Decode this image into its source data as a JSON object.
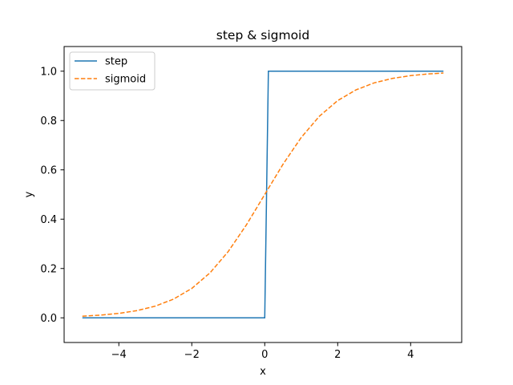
{
  "chart_data": {
    "type": "line",
    "title": "step & sigmoid",
    "xlabel": "x",
    "ylabel": "y",
    "xlim": [
      -5.5,
      5.4
    ],
    "ylim": [
      -0.1,
      1.1
    ],
    "xticks": [
      -4,
      -2,
      0,
      2,
      4
    ],
    "xtick_labels": [
      "−4",
      "−2",
      "0",
      "2",
      "4"
    ],
    "yticks": [
      0.0,
      0.2,
      0.4,
      0.6,
      0.8,
      1.0
    ],
    "ytick_labels": [
      "0.0",
      "0.2",
      "0.4",
      "0.6",
      "0.8",
      "1.0"
    ],
    "grid": false,
    "legend_position": "upper-left",
    "series": [
      {
        "name": "step",
        "color": "#1f77b4",
        "style": "solid",
        "x": [
          -5.0,
          0.0,
          0.1,
          4.9
        ],
        "y": [
          0,
          0,
          1,
          1
        ]
      },
      {
        "name": "sigmoid",
        "color": "#ff7f0e",
        "style": "dashed",
        "x": [
          -5.0,
          -4.5,
          -4.0,
          -3.5,
          -3.0,
          -2.5,
          -2.0,
          -1.5,
          -1.0,
          -0.5,
          0.0,
          0.5,
          1.0,
          1.5,
          2.0,
          2.5,
          3.0,
          3.5,
          4.0,
          4.5,
          4.9
        ],
        "y": [
          0.0067,
          0.011,
          0.018,
          0.0293,
          0.0474,
          0.0759,
          0.1192,
          0.1824,
          0.2689,
          0.3775,
          0.5,
          0.6225,
          0.7311,
          0.8176,
          0.8808,
          0.9241,
          0.9526,
          0.9707,
          0.982,
          0.989,
          0.9926
        ]
      }
    ]
  }
}
